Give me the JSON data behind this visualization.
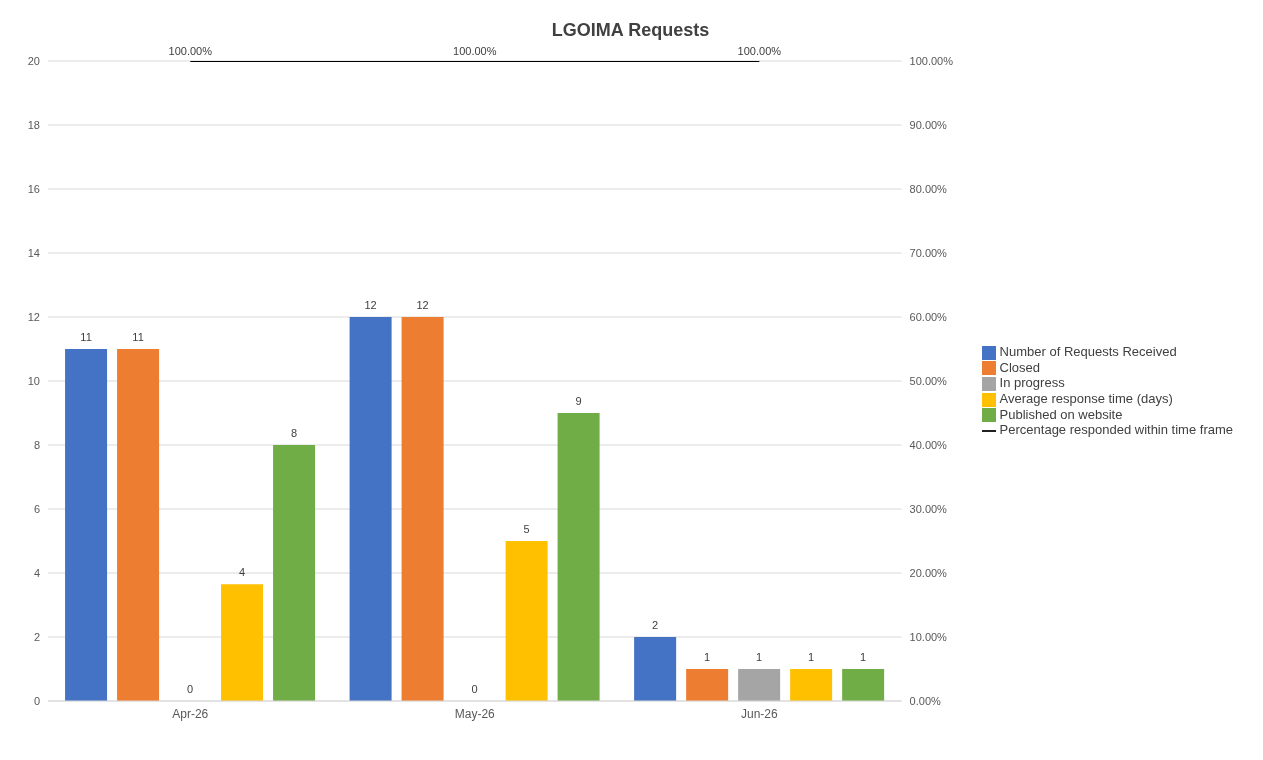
{
  "chart_data": {
    "type": "bar",
    "title": "LGOIMA Requests",
    "categories": [
      "Apr-26",
      "May-26",
      "Jun-26"
    ],
    "series": [
      {
        "name": "Number of Requests Received",
        "color": "#4472c4",
        "values": [
          11,
          12,
          2
        ],
        "value_labels": [
          "11",
          "12",
          "2"
        ]
      },
      {
        "name": "Closed",
        "color": "#ed7d31",
        "values": [
          11,
          12,
          1
        ],
        "value_labels": [
          "11",
          "12",
          "1"
        ]
      },
      {
        "name": "In progress",
        "color": "#a5a5a5",
        "values": [
          0,
          0,
          1
        ],
        "value_labels": [
          "0",
          "0",
          "1"
        ]
      },
      {
        "name": "Average response time (days)",
        "color": "#ffc000",
        "values": [
          3.65,
          5,
          1
        ],
        "value_labels": [
          "4",
          "5",
          "1"
        ]
      },
      {
        "name": "Published on website",
        "color": "#70ad47",
        "values": [
          8,
          9,
          1
        ],
        "value_labels": [
          "8",
          "9",
          "1"
        ]
      },
      {
        "name": "Percentage responded within time frame",
        "type": "line",
        "axis": "y2",
        "color": "#000000",
        "values": [
          100,
          100,
          100
        ],
        "value_labels": [
          "100.00%",
          "100.00%",
          "100.00%"
        ]
      }
    ],
    "ylim": [
      0,
      20
    ],
    "yticks": [
      0,
      2,
      4,
      6,
      8,
      10,
      12,
      14,
      16,
      18,
      20
    ],
    "y2lim": [
      0,
      100
    ],
    "y2ticks": [
      {
        "value": 0,
        "label": "0.00%"
      },
      {
        "value": 10,
        "label": "10.00%"
      },
      {
        "value": 20,
        "label": "20.00%"
      },
      {
        "value": 30,
        "label": "30.00%"
      },
      {
        "value": 40,
        "label": "40.00%"
      },
      {
        "value": 50,
        "label": "50.00%"
      },
      {
        "value": 60,
        "label": "60.00%"
      },
      {
        "value": 70,
        "label": "70.00%"
      },
      {
        "value": 80,
        "label": "80.00%"
      },
      {
        "value": 90,
        "label": "90.00%"
      },
      {
        "value": 100,
        "label": "100.00%"
      }
    ],
    "grid": "y",
    "legend": "right",
    "marker": "none",
    "line_style": "solid"
  }
}
